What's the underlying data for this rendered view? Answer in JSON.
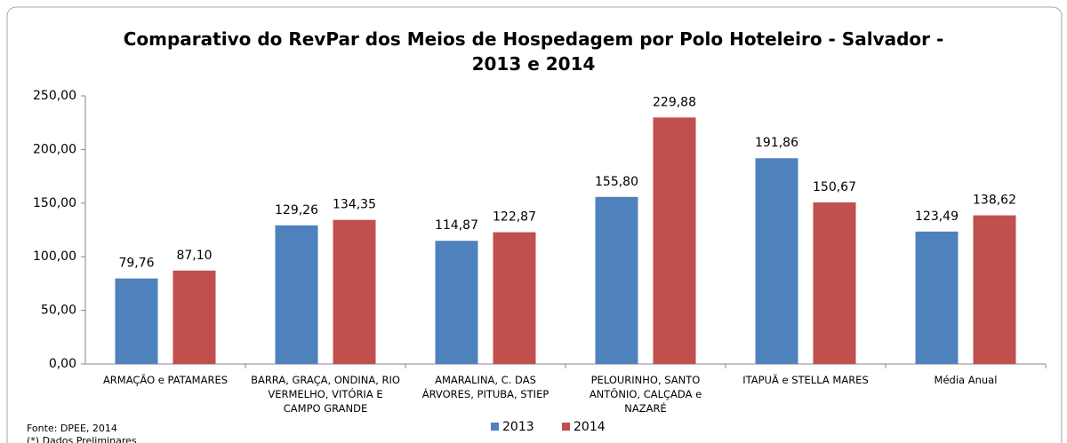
{
  "chart_data": {
    "type": "bar",
    "title": "Comparativo do RevPar dos Meios de Hospedagem por Polo Hoteleiro - Salvador - 2013 e 2014",
    "categories": [
      "ARMAÇÃO e PATAMARES",
      "BARRA, GRAÇA, ONDINA, RIO VERMELHO, VITÓRIA E CAMPO GRANDE",
      "AMARALINA, C. DAS ÁRVORES, PITUBA, STIEP",
      "PELOURINHO, SANTO ANTÔNIO, CALÇADA e NAZARÉ",
      "ITAPUÃ e STELLA MARES",
      "Média Anual"
    ],
    "series": [
      {
        "name": "2013",
        "color": "#4f81bd",
        "values": [
          79.76,
          129.26,
          114.87,
          155.8,
          191.86,
          123.49
        ],
        "value_labels": [
          "79,76",
          "129,26",
          "114,87",
          "155,80",
          "191,86",
          "123,49"
        ]
      },
      {
        "name": "2014",
        "color": "#c0504d",
        "values": [
          87.1,
          134.35,
          122.87,
          229.88,
          150.67,
          138.62
        ],
        "value_labels": [
          "87,10",
          "134,35",
          "122,87",
          "229,88",
          "150,67",
          "138,62"
        ]
      }
    ],
    "ylim": [
      0,
      250
    ],
    "yticks": [
      {
        "value": 0,
        "label": "0,00"
      },
      {
        "value": 50,
        "label": "50,00"
      },
      {
        "value": 100,
        "label": "100,00"
      },
      {
        "value": 150,
        "label": "150,00"
      },
      {
        "value": 200,
        "label": "200,00"
      },
      {
        "value": 250,
        "label": "250,00"
      }
    ],
    "legend": "bottom",
    "annotations": [
      "Fonte: DPEE, 2014",
      "(*) Dados Preliminares"
    ]
  }
}
